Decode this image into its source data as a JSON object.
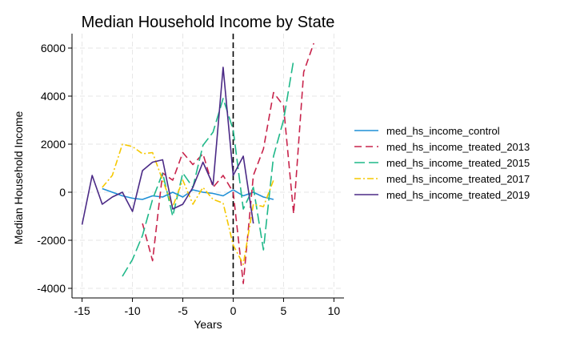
{
  "chart_data": {
    "type": "line",
    "title": "Median Household Income by State",
    "xlabel": "Years",
    "ylabel": "Median Household Income",
    "xlim": [
      -16,
      11
    ],
    "ylim": [
      -4400,
      6600
    ],
    "xticks": [
      -15,
      -10,
      -5,
      0,
      5,
      10
    ],
    "yticks": [
      -4000,
      -2000,
      0,
      2000,
      4000,
      6000
    ],
    "grid": true,
    "legend_position": "right",
    "reference_line": {
      "x": 0,
      "style": "dashed",
      "color": "#000000"
    },
    "series": [
      {
        "name": "med_hs_income_control",
        "color": "#1f8fd6",
        "dash": "",
        "x": [
          -13,
          -12,
          -11,
          -10,
          -9,
          -8,
          -7,
          -6,
          -5,
          -4,
          -3,
          -2,
          -1,
          0,
          1,
          2,
          3,
          4
        ],
        "y": [
          150,
          0,
          -150,
          -250,
          -300,
          -150,
          -200,
          0,
          -200,
          100,
          0,
          -50,
          -150,
          100,
          -150,
          0,
          -200,
          -300
        ]
      },
      {
        "name": "med_hs_income_treated_2013",
        "color": "#c8234b",
        "dash": "9 5",
        "x": [
          -9,
          -8,
          -7,
          -6,
          -5,
          -4,
          -3,
          -2,
          -1,
          0,
          1,
          2,
          3,
          4,
          5,
          6,
          7,
          8
        ],
        "y": [
          -1300,
          -2850,
          800,
          500,
          1650,
          1150,
          1600,
          200,
          700,
          0,
          -3800,
          700,
          1800,
          4150,
          3600,
          -900,
          5000,
          6200
        ]
      },
      {
        "name": "med_hs_income_treated_2015",
        "color": "#1fb889",
        "dash": "13 5",
        "x": [
          -11,
          -10,
          -9,
          -8,
          -7,
          -6,
          -5,
          -4,
          -3,
          -2,
          -1,
          0,
          1,
          2,
          3,
          4,
          5,
          6
        ],
        "y": [
          -3500,
          -2800,
          -1800,
          -300,
          800,
          -1000,
          800,
          200,
          1950,
          2500,
          3900,
          2600,
          -700,
          200,
          -2400,
          1500,
          3000,
          5500
        ]
      },
      {
        "name": "med_hs_income_treated_2017",
        "color": "#f5c800",
        "dash": "8 3 2 3",
        "x": [
          -13,
          -12,
          -11,
          -10,
          -9,
          -8,
          -7,
          -6,
          -5,
          -4,
          -3,
          -2,
          -1,
          0,
          1,
          2,
          3,
          4
        ],
        "y": [
          200,
          700,
          2000,
          1900,
          1600,
          1650,
          500,
          -600,
          500,
          -500,
          200,
          -300,
          -450,
          -2200,
          -3000,
          -500,
          -600,
          500
        ]
      },
      {
        "name": "med_hs_income_treated_2019",
        "color": "#4b2a86",
        "dash": "",
        "x": [
          -15,
          -14,
          -13,
          -12,
          -11,
          -10,
          -9,
          -8,
          -7,
          -6,
          -5,
          -4,
          -3,
          -2,
          -1,
          0,
          1,
          2
        ],
        "y": [
          -1350,
          700,
          -500,
          -200,
          0,
          -800,
          900,
          1250,
          1350,
          -700,
          -500,
          200,
          1250,
          300,
          5200,
          700,
          1500,
          -1300
        ]
      }
    ]
  }
}
